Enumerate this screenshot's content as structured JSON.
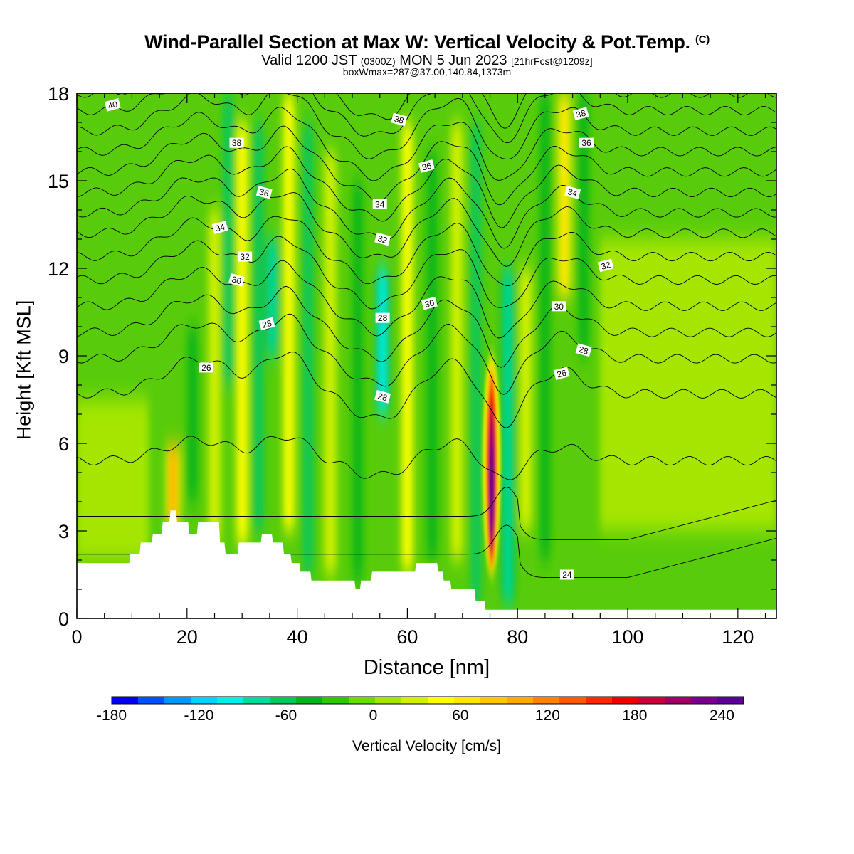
{
  "header": {
    "title": "Wind-Parallel Section at Max W: Vertical Velocity & Pot.Temp.",
    "copyright_mark": "(C)",
    "valid_prefix": "Valid 1200 JST",
    "valid_utc": "(0300Z)",
    "valid_date": "MON 5 Jun 2023",
    "forecast_info": "[21hrFcst@1209z]",
    "box_info": "boxWmax=287@37.00,140.84,1373m"
  },
  "colors": {
    "terrain": "#ffffff",
    "contour": "#000000",
    "colorbar": [
      "#0000ee",
      "#0050ff",
      "#0096ff",
      "#00d2ff",
      "#00f0e6",
      "#00dc9b",
      "#00c85a",
      "#00b41e",
      "#32c800",
      "#6edc00",
      "#a5e600",
      "#d2f000",
      "#ffff00",
      "#ffe600",
      "#ffc800",
      "#ffaa00",
      "#ff8200",
      "#ff5a00",
      "#ff2800",
      "#ee0000",
      "#c8003c",
      "#a00064",
      "#78008c",
      "#5a0096"
    ]
  },
  "chart_data": {
    "type": "heatmap",
    "title": "Wind-Parallel Section at Max W: Vertical Velocity & Pot.Temp.",
    "xlabel": "Distance [nm]",
    "ylabel": "Height [Kft MSL]",
    "xlim": [
      0,
      127
    ],
    "ylim": [
      0,
      18
    ],
    "x_ticks": [
      0,
      20,
      40,
      60,
      80,
      100,
      120
    ],
    "y_ticks": [
      0,
      3,
      6,
      9,
      12,
      15,
      18
    ],
    "colorbar": {
      "label": "Vertical Velocity [cm/s]",
      "min": -180,
      "max": 255,
      "step": 18.75,
      "ticks": [
        -180,
        -120,
        -60,
        0,
        60,
        120,
        180,
        240
      ]
    },
    "w_features": [
      {
        "x": 17.5,
        "w": 110,
        "z0": 3,
        "z1": 6
      },
      {
        "x": 21,
        "w": -45,
        "z0": 4,
        "z1": 10
      },
      {
        "x": 25,
        "w": 30,
        "z0": 2.5,
        "z1": 14
      },
      {
        "x": 27.5,
        "w": -60,
        "z0": 8,
        "z1": 18
      },
      {
        "x": 30,
        "w": 55,
        "z0": 2.5,
        "z1": 17
      },
      {
        "x": 33,
        "w": -55,
        "z0": 3,
        "z1": 17
      },
      {
        "x": 35.5,
        "w": -80,
        "z0": 9,
        "z1": 13
      },
      {
        "x": 38.5,
        "w": 55,
        "z0": 3,
        "z1": 18
      },
      {
        "x": 42,
        "w": -50,
        "z0": 1.5,
        "z1": 17
      },
      {
        "x": 46,
        "w": 40,
        "z0": 1.5,
        "z1": 16
      },
      {
        "x": 51,
        "w": -40,
        "z0": 1.3,
        "z1": 15
      },
      {
        "x": 55.5,
        "w": -90,
        "z0": 7,
        "z1": 12
      },
      {
        "x": 60,
        "w": 50,
        "z0": 1.6,
        "z1": 17
      },
      {
        "x": 64.5,
        "w": -40,
        "z0": 2,
        "z1": 16
      },
      {
        "x": 69,
        "w": 40,
        "z0": 2,
        "z1": 17
      },
      {
        "x": 72.5,
        "w": -50,
        "z0": 0.5,
        "z1": 17
      },
      {
        "x": 75.3,
        "w": 287,
        "z0": 1.5,
        "z1": 9
      },
      {
        "x": 78.3,
        "w": -70,
        "z0": 0.5,
        "z1": 12
      },
      {
        "x": 81.5,
        "w": 30,
        "z0": 3,
        "z1": 12
      },
      {
        "x": 85,
        "w": -40,
        "z0": 2,
        "z1": 18
      },
      {
        "x": 88.5,
        "w": 75,
        "z0": 11,
        "z1": 18
      },
      {
        "x": 92,
        "w": -40,
        "z0": 9,
        "z1": 18
      }
    ],
    "terrain_kft": [
      [
        0,
        1.9
      ],
      [
        9.5,
        1.9
      ],
      [
        9.7,
        2.2
      ],
      [
        11.4,
        2.2
      ],
      [
        11.6,
        2.6
      ],
      [
        13.6,
        2.6
      ],
      [
        13.8,
        2.9
      ],
      [
        15.4,
        2.9
      ],
      [
        15.6,
        3.3
      ],
      [
        16.8,
        3.3
      ],
      [
        17,
        3.7
      ],
      [
        18,
        3.7
      ],
      [
        18.2,
        3.3
      ],
      [
        20.2,
        3.3
      ],
      [
        20.4,
        2.9
      ],
      [
        21.8,
        2.9
      ],
      [
        22,
        3.3
      ],
      [
        25.8,
        3.3
      ],
      [
        26,
        2.6
      ],
      [
        26.8,
        2.6
      ],
      [
        27,
        2.2
      ],
      [
        29.2,
        2.2
      ],
      [
        29.4,
        2.6
      ],
      [
        33.4,
        2.6
      ],
      [
        33.6,
        2.9
      ],
      [
        35.4,
        2.9
      ],
      [
        35.6,
        2.6
      ],
      [
        37.4,
        2.6
      ],
      [
        37.6,
        2.2
      ],
      [
        38.8,
        2.2
      ],
      [
        39,
        1.9
      ],
      [
        40.4,
        1.9
      ],
      [
        40.6,
        1.6
      ],
      [
        42.4,
        1.6
      ],
      [
        42.6,
        1.3
      ],
      [
        50.4,
        1.3
      ],
      [
        50.6,
        1.0
      ],
      [
        51.4,
        1.0
      ],
      [
        51.6,
        1.3
      ],
      [
        53.4,
        1.3
      ],
      [
        53.6,
        1.6
      ],
      [
        61.4,
        1.6
      ],
      [
        61.6,
        1.9
      ],
      [
        65.4,
        1.9
      ],
      [
        65.6,
        1.6
      ],
      [
        66.4,
        1.6
      ],
      [
        66.6,
        1.3
      ],
      [
        67.8,
        1.3
      ],
      [
        68,
        1.0
      ],
      [
        72.2,
        1.0
      ],
      [
        72.4,
        0.6
      ],
      [
        74,
        0.6
      ],
      [
        74.2,
        0.3
      ],
      [
        127,
        0.3
      ]
    ],
    "theta_levels": [
      24,
      25,
      26,
      27,
      28,
      29,
      30,
      31,
      32,
      33,
      34,
      35,
      36,
      37,
      38,
      39,
      40
    ],
    "theta_base_heights_kft": [
      2.2,
      3.5,
      5.4,
      7.7,
      8.9,
      9.8,
      10.7,
      11.6,
      12.4,
      13.2,
      13.9,
      14.6,
      15.3,
      16.0,
      16.7,
      17.4,
      18.0
    ],
    "contour_labels": [
      {
        "text": "40",
        "x": 6.5,
        "z": 17.6
      },
      {
        "text": "38",
        "x": 29,
        "z": 16.3
      },
      {
        "text": "36",
        "x": 34,
        "z": 14.6
      },
      {
        "text": "34",
        "x": 26,
        "z": 13.4
      },
      {
        "text": "32",
        "x": 30.5,
        "z": 12.4
      },
      {
        "text": "30",
        "x": 29,
        "z": 11.6
      },
      {
        "text": "28",
        "x": 34.5,
        "z": 10.1
      },
      {
        "text": "26",
        "x": 23.5,
        "z": 8.6
      },
      {
        "text": "38",
        "x": 58.5,
        "z": 17.1
      },
      {
        "text": "36",
        "x": 63.5,
        "z": 15.5
      },
      {
        "text": "34",
        "x": 55,
        "z": 14.2
      },
      {
        "text": "32",
        "x": 55.5,
        "z": 13.0
      },
      {
        "text": "30",
        "x": 64,
        "z": 10.8
      },
      {
        "text": "28",
        "x": 55.5,
        "z": 10.3
      },
      {
        "text": "28",
        "x": 55.5,
        "z": 7.6
      },
      {
        "text": "38",
        "x": 91.5,
        "z": 17.3
      },
      {
        "text": "36",
        "x": 92.5,
        "z": 16.3
      },
      {
        "text": "34",
        "x": 90,
        "z": 14.6
      },
      {
        "text": "32",
        "x": 96,
        "z": 12.1
      },
      {
        "text": "30",
        "x": 87.5,
        "z": 10.7
      },
      {
        "text": "28",
        "x": 92,
        "z": 9.2
      },
      {
        "text": "26",
        "x": 88,
        "z": 8.4
      },
      {
        "text": "24",
        "x": 89,
        "z": 1.5
      }
    ]
  }
}
